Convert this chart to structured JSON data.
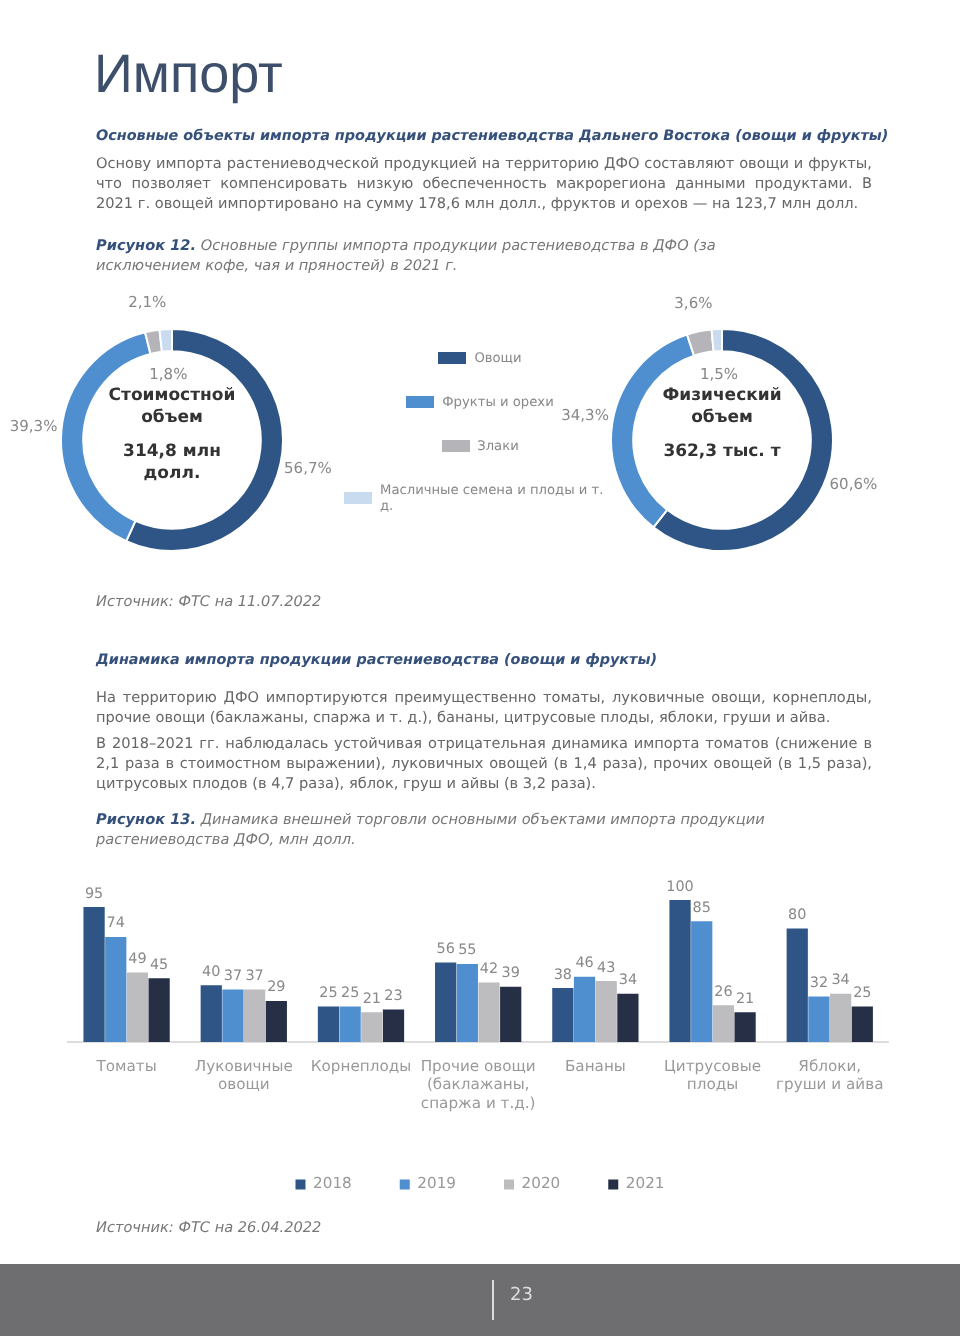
{
  "chart_data": [
    {
      "type": "donut",
      "title": "Импорт",
      "subtitle": "Основные объекты импорта продукции растениеводства Дальнего Востока (овощи и фрукты)",
      "annotations": [
        "Основу импорта растениеводческой продукцией на территорию ДФО составляют овощи и фрукты, что позволяет компенсировать низкую обеспеченность макрорегиона данными продуктами. В 2021 г. овощей импортировано на сумму 178,6 млн долл., фруктов и орехов — на 123,7 млн долл.",
        "Рисунок 12. Основные группы импорта продукции растениеводства в ДФО (за исключением кофе, чая и пряностей) в 2021 г.",
        "Стоимостной объем",
        "314,8 млн долл.",
        "Физический объем",
        "362,3 тыс. т",
        "Источник: ФТС на 11.07.2022"
      ],
      "categories": [
        "Овощи",
        "Фрукты и орехи",
        "Злаки",
        "Масличные семена и плоды и т. д."
      ],
      "colors": [
        "#2e5585",
        "#4f8fd0",
        "#b5b5b9",
        "#c9dcef"
      ],
      "series": [
        {
          "values": [
            56.7,
            39.3,
            2.1,
            1.8
          ],
          "value_labels": [
            "56,7%",
            "39,3%",
            "2,1%",
            "1,8%"
          ]
        },
        {
          "values": [
            60.6,
            34.3,
            3.6,
            1.5
          ],
          "value_labels": [
            "60,6%",
            "34,3%",
            "3,6%",
            "1,5%"
          ]
        }
      ],
      "legend": "right"
    },
    {
      "type": "bar",
      "title": "Динамика импорта продукции растениеводства (овощи и фрукты)",
      "annotations": [
        "На территорию ДФО импортируются преимущественно томаты, луковичные овощи, корнеплоды, прочие овощи (баклажаны, спаржа и т. д.), бананы, цитрусовые плоды, яблоки, груши и айва.",
        "В 2018–2021 гг. наблюдалась устойчивая отрицательная динамика импорта томатов (снижение в 2,1 раза в стоимостном выражении), луковичных овощей (в 1,4 раза), прочих овощей (в 1,5 раза), цитрусовых плодов (в 4,7 раза), яблок, груш и айвы (в 3,2 раза).",
        "Рисунок 13. Динамика внешней торговли основными объектами импорта продукции растениеводства ДФО, млн долл.",
        "Источник: ФТС на 26.04.2022",
        "23"
      ],
      "categories": [
        "Томаты",
        "Луковичные овощи",
        "Корнеплоды",
        "Прочие овощи (баклажаны, спаржа и т.д.)",
        "Бананы",
        "Цитрусовые плоды",
        "Яблоки, груши и айва"
      ],
      "series": [
        {
          "name": "2018",
          "color": "#2e5585",
          "values": [
            95,
            40,
            25,
            56,
            38,
            100,
            80
          ]
        },
        {
          "name": "2019",
          "color": "#4f8fd0",
          "values": [
            74,
            37,
            25,
            55,
            46,
            85,
            32
          ]
        },
        {
          "name": "2020",
          "color": "#bdbdc0",
          "values": [
            49,
            37,
            21,
            42,
            43,
            26,
            34
          ]
        },
        {
          "name": "2021",
          "color": "#262f45",
          "values": [
            45,
            29,
            23,
            39,
            34,
            21,
            25
          ]
        }
      ],
      "data_labels": true,
      "legend": "bottom",
      "grid": false
    }
  ]
}
